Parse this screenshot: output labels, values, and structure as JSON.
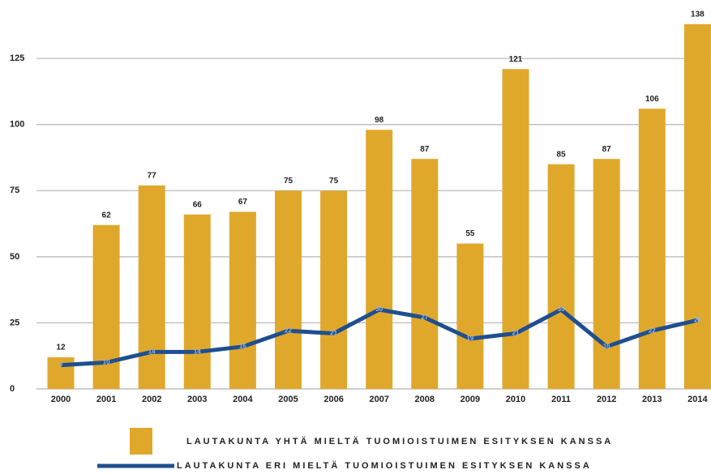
{
  "chart_data": {
    "type": "bar_line",
    "categories": [
      "2000",
      "2001",
      "2002",
      "2003",
      "2004",
      "2005",
      "2006",
      "2007",
      "2008",
      "2009",
      "2010",
      "2011",
      "2012",
      "2013",
      "2014"
    ],
    "series": [
      {
        "name": "LAUTAKUNTA YHTÄ MIELTÄ TUOMIOISTUIMEN ESITYKSEN KANSSA",
        "color": "#e0a82b",
        "type": "bar",
        "values": [
          12,
          62,
          77,
          66,
          67,
          75,
          75,
          98,
          87,
          55,
          121,
          85,
          87,
          106,
          138
        ]
      },
      {
        "name": "LAUTAKUNTA ERI MIELTÄ TUOMIOISTUIMEN ESITYKSEN KANSSA",
        "color": "#1f4f8f",
        "type": "line",
        "values": [
          9,
          10,
          14,
          14,
          16,
          22,
          21,
          30,
          27,
          19,
          21,
          30,
          16,
          22,
          26
        ]
      }
    ],
    "ylim": [
      0,
      141
    ],
    "yticks": [
      0,
      25,
      50,
      75,
      100,
      125
    ],
    "grid": true
  }
}
